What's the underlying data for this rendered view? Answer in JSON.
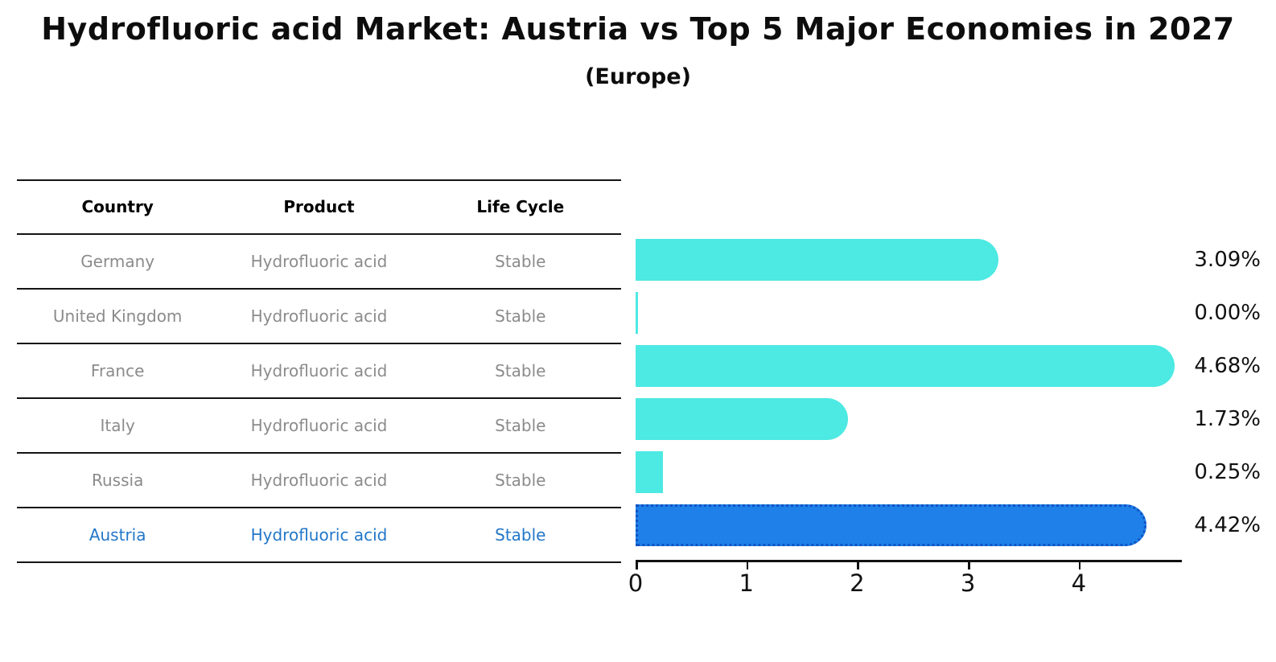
{
  "title": "Hydrofluoric acid Market: Austria vs Top 5 Major Economies in 2027",
  "subtitle": "(Europe)",
  "table": {
    "columns": [
      "Country",
      "Product",
      "Life Cycle"
    ],
    "rows": [
      {
        "country": "Germany",
        "product": "Hydrofluoric acid",
        "life_cycle": "Stable",
        "highlighted": false
      },
      {
        "country": "United Kingdom",
        "product": "Hydrofluoric acid",
        "life_cycle": "Stable",
        "highlighted": false
      },
      {
        "country": "France",
        "product": "Hydrofluoric acid",
        "life_cycle": "Stable",
        "highlighted": false
      },
      {
        "country": "Italy",
        "product": "Hydrofluoric acid",
        "life_cycle": "Stable",
        "highlighted": false
      },
      {
        "country": "Russia",
        "product": "Hydrofluoric acid",
        "life_cycle": "Stable",
        "highlighted": false
      },
      {
        "country": "Austria",
        "product": "Hydrofluoric acid",
        "life_cycle": "Stable",
        "highlighted": true
      }
    ]
  },
  "chart_data": {
    "type": "bar",
    "orientation": "horizontal",
    "title": "Hydrofluoric acid Market: Austria vs Top 5 Major Economies in 2027 (Europe)",
    "categories": [
      "Germany",
      "United Kingdom",
      "France",
      "Italy",
      "Russia",
      "Austria"
    ],
    "values": [
      3.09,
      0.0,
      4.68,
      1.73,
      0.25,
      4.42
    ],
    "value_labels": [
      "3.09%",
      "0.00%",
      "4.68%",
      "1.73%",
      "0.25%",
      "4.42%"
    ],
    "unit": "%",
    "x_ticks": [
      0,
      1,
      2,
      3,
      4
    ],
    "xlim": [
      0,
      4.9
    ],
    "grid": false,
    "legend": null,
    "bar_color": "#4DE9E3",
    "highlight_index": 5,
    "highlight_color": "#1E80E8",
    "highlight_border_color": "#1253C4"
  },
  "colors": {
    "text_heading": "#000000",
    "text_muted": "#8b8b8b",
    "highlight_text": "#2277C8",
    "axis": "#111111"
  }
}
